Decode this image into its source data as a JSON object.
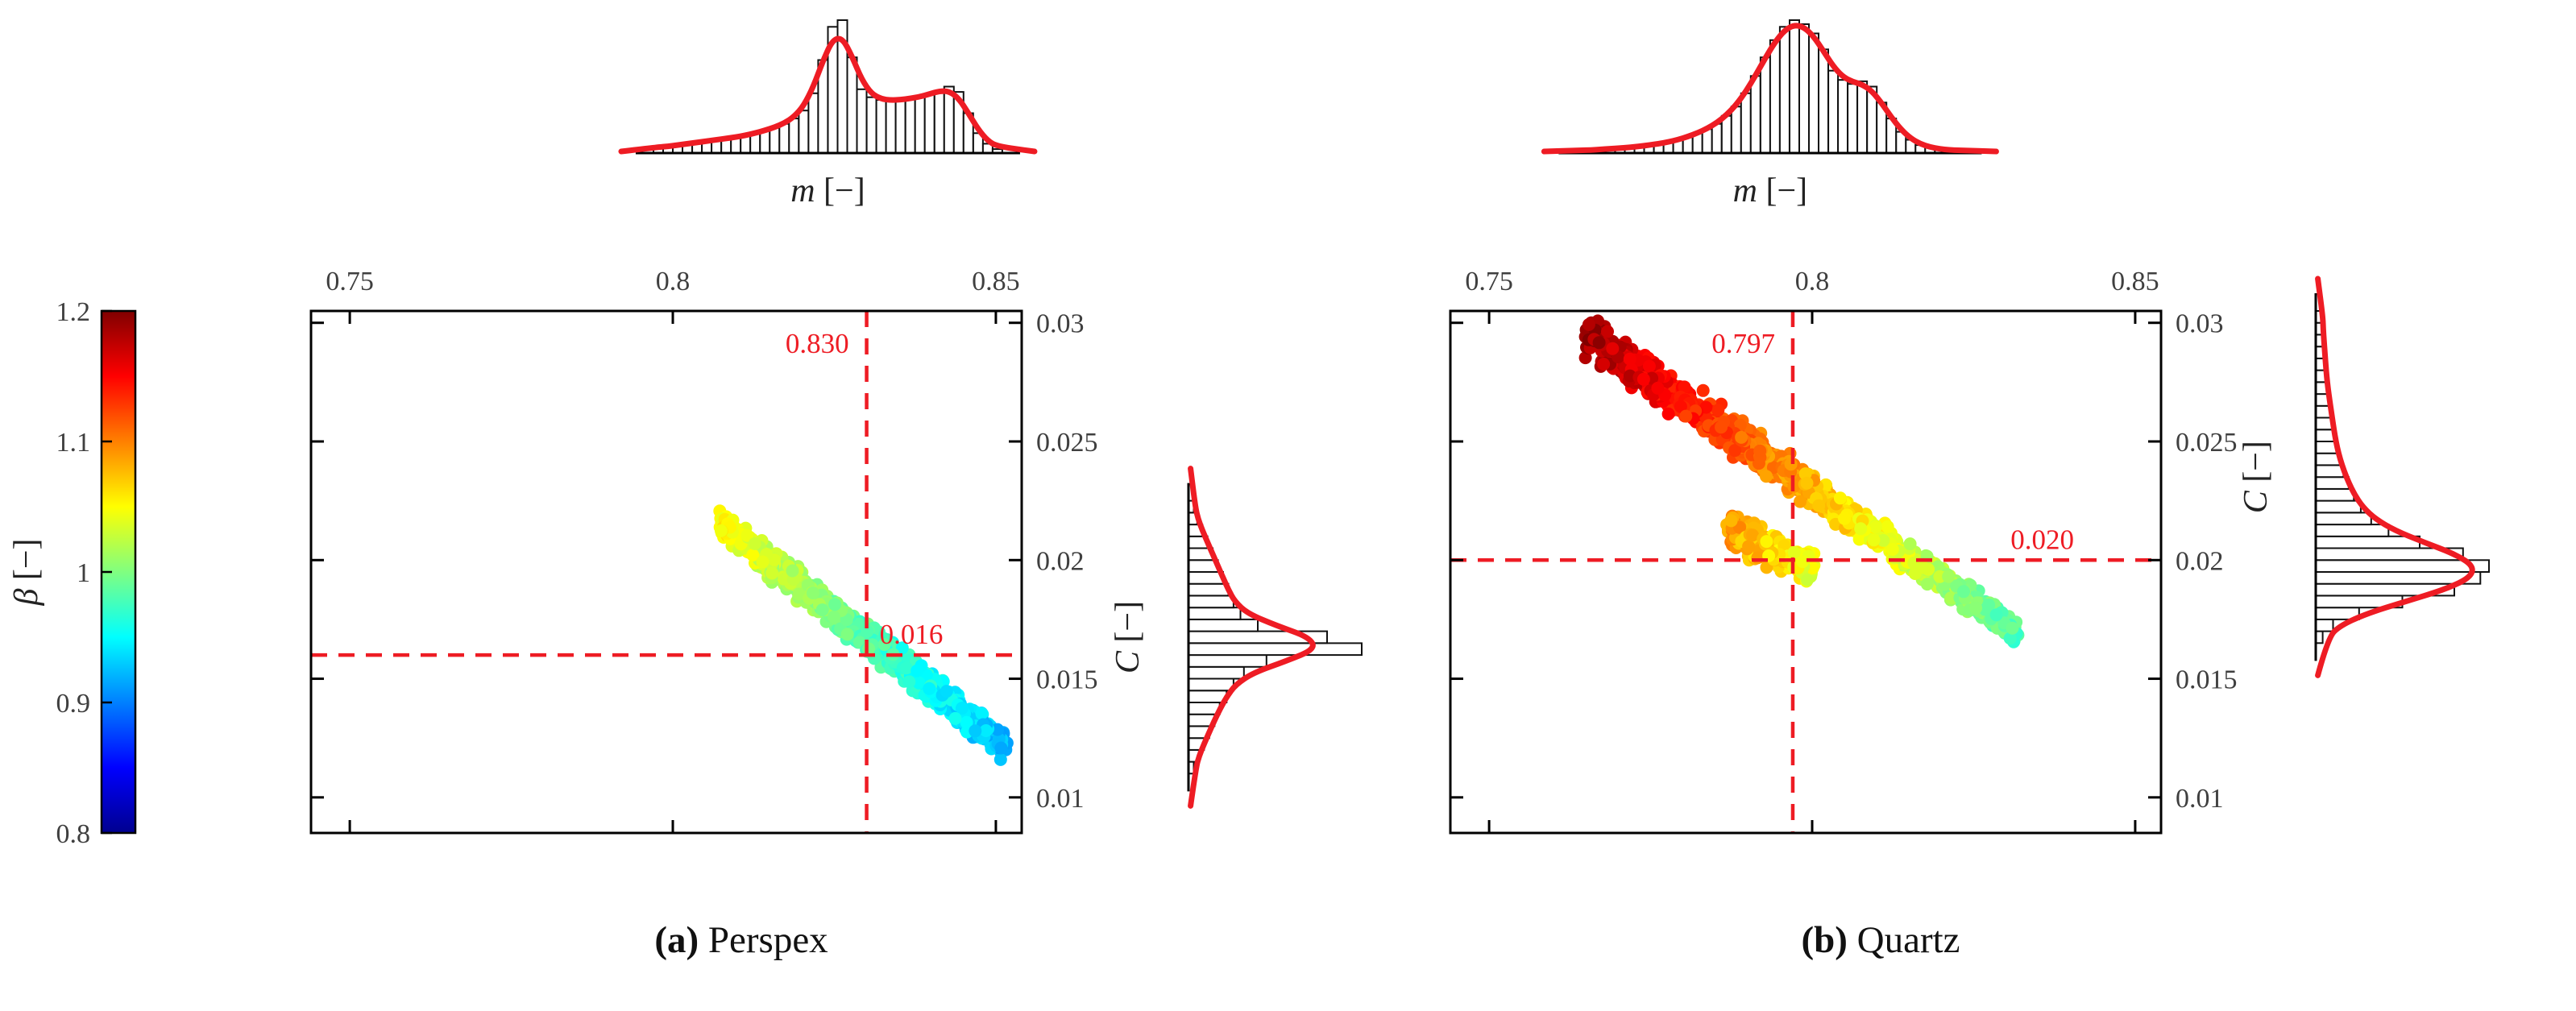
{
  "figure": {
    "background": "#ffffff",
    "accent_red": "#ee1c24",
    "axis_color": "#000000",
    "tick_label_color": "#3f3f3f",
    "captions": {
      "a": {
        "bold": "(a)",
        "rest": " Perspex"
      },
      "b": {
        "bold": "(b)",
        "rest": " Quartz"
      }
    }
  },
  "colorbar": {
    "label": "β [−]",
    "range": [
      0.8,
      1.2
    ],
    "ticks": [
      {
        "value": 0.8,
        "label": "0.8"
      },
      {
        "value": 0.9,
        "label": "0.9"
      },
      {
        "value": 1.0,
        "label": "1"
      },
      {
        "value": 1.1,
        "label": "1.1"
      },
      {
        "value": 1.2,
        "label": "1.2"
      }
    ],
    "colormap": "jet"
  },
  "chart_data": [
    {
      "id": "a",
      "type": "scatter",
      "caption": "(a) Perspex",
      "x_axis": {
        "label": "m [−]",
        "side": "top",
        "range": [
          0.744,
          0.854
        ],
        "ticks": [
          0.75,
          0.8,
          0.85
        ],
        "tick_labels": [
          "0.75",
          "0.8",
          "0.85"
        ]
      },
      "y_axis": {
        "label": "C [−]",
        "side": "right",
        "range": [
          0.0085,
          0.0305
        ],
        "ticks": [
          0.01,
          0.015,
          0.02,
          0.025,
          0.03
        ],
        "tick_labels": [
          "0.01",
          "0.015",
          "0.02",
          "0.025",
          "0.03"
        ]
      },
      "color_axis": {
        "label": "β [−]",
        "range": [
          0.8,
          1.2
        ]
      },
      "crosshair": {
        "m": 0.83,
        "m_label": "0.830",
        "C": 0.016,
        "C_label": "0.016"
      },
      "scatter_bands": [
        {
          "m0": 0.8075,
          "C0": 0.0215,
          "beta0": 1.05,
          "m1": 0.8515,
          "C1": 0.0122,
          "beta1": 0.92,
          "width0": 0.00085,
          "width1": 0.00085,
          "n": 950,
          "seed": 7
        }
      ],
      "m_hist": {
        "start": 0.797,
        "bin_width": 0.0015,
        "heights": [
          0.04,
          0.05,
          0.06,
          0.07,
          0.08,
          0.09,
          0.1,
          0.11,
          0.12,
          0.13,
          0.15,
          0.17,
          0.19,
          0.22,
          0.26,
          0.32,
          0.45,
          0.7,
          0.95,
          1.0,
          0.72,
          0.48,
          0.42,
          0.4,
          0.39,
          0.4,
          0.41,
          0.42,
          0.44,
          0.47,
          0.5,
          0.46,
          0.3,
          0.15,
          0.07,
          0.03
        ]
      },
      "C_hist": {
        "start": 0.011,
        "bin_width": 0.0005,
        "heights": [
          0.03,
          0.06,
          0.09,
          0.12,
          0.15,
          0.18,
          0.22,
          0.26,
          0.32,
          0.45,
          1.0,
          0.8,
          0.4,
          0.3,
          0.26,
          0.23,
          0.2,
          0.17,
          0.14,
          0.11,
          0.08,
          0.05,
          0.03
        ]
      }
    },
    {
      "id": "b",
      "type": "scatter",
      "caption": "(b) Quartz",
      "x_axis": {
        "label": "m [−]",
        "side": "top",
        "range": [
          0.744,
          0.854
        ],
        "ticks": [
          0.75,
          0.8,
          0.85
        ],
        "tick_labels": [
          "0.75",
          "0.8",
          "0.85"
        ]
      },
      "y_axis": {
        "label": "C [−]",
        "side": "right",
        "range": [
          0.0085,
          0.0305
        ],
        "ticks": [
          0.01,
          0.015,
          0.02,
          0.025,
          0.03
        ],
        "tick_labels": [
          "0.01",
          "0.015",
          "0.02",
          "0.025",
          "0.03"
        ]
      },
      "color_axis": {
        "label": "β [−]",
        "range": [
          0.8,
          1.2
        ]
      },
      "crosshair": {
        "m": 0.797,
        "m_label": "0.797",
        "C": 0.02,
        "C_label": "0.020"
      },
      "scatter_bands": [
        {
          "m0": 0.7645,
          "C0": 0.0296,
          "beta0": 1.19,
          "m1": 0.8315,
          "C1": 0.017,
          "beta1": 0.98,
          "width0": 0.0013,
          "width1": 0.0007,
          "n": 1150,
          "seed": 11
        },
        {
          "m0": 0.787,
          "C0": 0.0213,
          "beta0": 1.09,
          "m1": 0.8005,
          "C1": 0.0196,
          "beta1": 1.04,
          "width0": 0.0011,
          "width1": 0.0009,
          "n": 280,
          "seed": 5
        }
      ],
      "m_hist": {
        "start": 0.7635,
        "bin_width": 0.0015,
        "heights": [
          0.02,
          0.02,
          0.03,
          0.03,
          0.04,
          0.04,
          0.05,
          0.06,
          0.07,
          0.08,
          0.1,
          0.12,
          0.15,
          0.18,
          0.22,
          0.28,
          0.35,
          0.45,
          0.58,
          0.72,
          0.85,
          0.95,
          1.0,
          0.97,
          0.9,
          0.78,
          0.62,
          0.55,
          0.52,
          0.54,
          0.5,
          0.38,
          0.26,
          0.16,
          0.1,
          0.06,
          0.04,
          0.03,
          0.02,
          0.02
        ]
      },
      "C_hist": {
        "start": 0.0165,
        "bin_width": 0.0005,
        "heights": [
          0.04,
          0.1,
          0.25,
          0.5,
          0.8,
          0.95,
          1.0,
          0.85,
          0.6,
          0.42,
          0.32,
          0.26,
          0.22,
          0.19,
          0.16,
          0.14,
          0.12,
          0.11,
          0.1,
          0.09,
          0.08,
          0.07,
          0.06,
          0.06,
          0.05,
          0.05,
          0.04,
          0.04
        ]
      }
    }
  ]
}
